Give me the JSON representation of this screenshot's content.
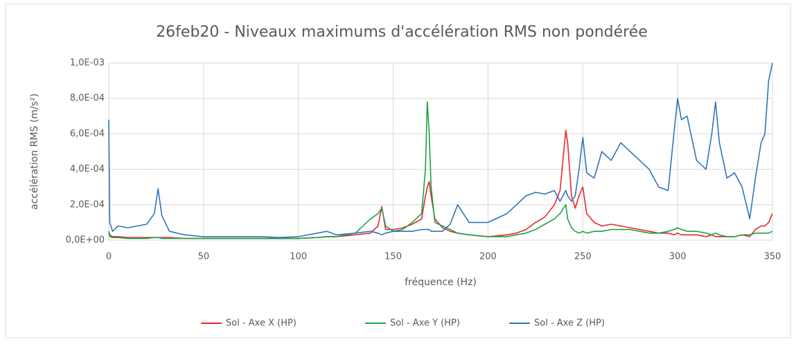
{
  "chart_data": {
    "type": "line",
    "title": "26feb20 - Niveaux maximums d'accélération RMS non pondérée",
    "x_label": "fréquence (Hz)",
    "y_label": "accélération RMS (m/s²)",
    "x": [
      0,
      0.5,
      2,
      5,
      10,
      15,
      20,
      24,
      26,
      28,
      32,
      40,
      50,
      60,
      70,
      80,
      90,
      100,
      110,
      115,
      120,
      130,
      138,
      142,
      144,
      146,
      150,
      155,
      160,
      165,
      167,
      168,
      169,
      170,
      172,
      176,
      180,
      184,
      190,
      200,
      210,
      215,
      220,
      225,
      230,
      235,
      238,
      241,
      242,
      244,
      246,
      248,
      250,
      252,
      256,
      260,
      265,
      270,
      275,
      280,
      285,
      290,
      295,
      298,
      300,
      302,
      305,
      310,
      315,
      318,
      320,
      322,
      326,
      330,
      334,
      338,
      341,
      344,
      346,
      348,
      350
    ],
    "series": [
      {
        "name": "Sol - Axe X (HP)",
        "color": "#e8262b",
        "values": [
          5e-05,
          3e-05,
          2e-05,
          2e-05,
          1.5e-05,
          1.5e-05,
          1.5e-05,
          1.5e-05,
          1.5e-05,
          1.5e-05,
          1.5e-05,
          1e-05,
          1e-05,
          1e-05,
          1e-05,
          1e-05,
          1e-05,
          1e-05,
          1.5e-05,
          2e-05,
          2e-05,
          3e-05,
          4e-05,
          8e-05,
          0.00019,
          6e-05,
          6e-05,
          7e-05,
          9e-05,
          0.00012,
          0.00025,
          0.0003,
          0.00033,
          0.00025,
          0.00012,
          7e-05,
          5e-05,
          4e-05,
          3e-05,
          2e-05,
          3e-05,
          4e-05,
          6e-05,
          0.0001,
          0.00013,
          0.0002,
          0.00028,
          0.00062,
          0.00055,
          0.00025,
          0.00018,
          0.00025,
          0.0003,
          0.00015,
          0.0001,
          8e-05,
          9e-05,
          8e-05,
          7e-05,
          6e-05,
          5e-05,
          4e-05,
          4e-05,
          3e-05,
          4e-05,
          3e-05,
          3e-05,
          3e-05,
          2e-05,
          3e-05,
          2e-05,
          2e-05,
          2e-05,
          2e-05,
          3e-05,
          2e-05,
          6e-05,
          8e-05,
          8e-05,
          0.0001,
          0.00015
        ]
      },
      {
        "name": "Sol - Axe Y (HP)",
        "color": "#1fa043",
        "values": [
          5e-05,
          2e-05,
          1.5e-05,
          1.5e-05,
          1e-05,
          1e-05,
          1e-05,
          1.5e-05,
          1.5e-05,
          1e-05,
          1e-05,
          1e-05,
          1e-05,
          1e-05,
          1e-05,
          1e-05,
          1e-05,
          1e-05,
          1.5e-05,
          2e-05,
          2e-05,
          4e-05,
          0.00012,
          0.00015,
          0.00018,
          8e-05,
          5e-05,
          6e-05,
          0.0001,
          0.00015,
          0.0004,
          0.00078,
          0.0006,
          0.0003,
          0.0001,
          8e-05,
          6e-05,
          4e-05,
          3e-05,
          2e-05,
          2e-05,
          3e-05,
          4e-05,
          6e-05,
          9e-05,
          0.00012,
          0.00015,
          0.0002,
          0.00012,
          7e-05,
          5e-05,
          4e-05,
          5e-05,
          4e-05,
          5e-05,
          5e-05,
          6e-05,
          6e-05,
          6e-05,
          5e-05,
          4e-05,
          4e-05,
          5e-05,
          6e-05,
          7e-05,
          6e-05,
          5e-05,
          5e-05,
          4e-05,
          3e-05,
          4e-05,
          3e-05,
          2e-05,
          2e-05,
          3e-05,
          3e-05,
          4e-05,
          4e-05,
          4e-05,
          4e-05,
          5e-05
        ]
      },
      {
        "name": "Sol - Axe Z (HP)",
        "color": "#2e75b6",
        "values": [
          0.00068,
          0.0001,
          5e-05,
          8e-05,
          7e-05,
          8e-05,
          9e-05,
          0.00015,
          0.00029,
          0.00014,
          5e-05,
          3e-05,
          2e-05,
          2e-05,
          2e-05,
          2e-05,
          1.5e-05,
          2e-05,
          4e-05,
          5e-05,
          3e-05,
          4e-05,
          5e-05,
          4e-05,
          3e-05,
          4e-05,
          5e-05,
          5e-05,
          5e-05,
          6e-05,
          6e-05,
          6e-05,
          6e-05,
          5e-05,
          5e-05,
          5e-05,
          9e-05,
          0.0002,
          0.0001,
          0.0001,
          0.00015,
          0.0002,
          0.00025,
          0.00027,
          0.00026,
          0.00028,
          0.00022,
          0.00028,
          0.00025,
          0.00022,
          0.00025,
          0.0004,
          0.00058,
          0.00038,
          0.00035,
          0.0005,
          0.00045,
          0.00055,
          0.0005,
          0.00045,
          0.0004,
          0.0003,
          0.00028,
          0.0006,
          0.0008,
          0.00068,
          0.0007,
          0.00045,
          0.0004,
          0.0006,
          0.00078,
          0.00055,
          0.00035,
          0.00038,
          0.0003,
          0.00012,
          0.00035,
          0.00055,
          0.0006,
          0.0009,
          0.001
        ]
      }
    ],
    "xlim": [
      0,
      350
    ],
    "xticks": [
      0,
      50,
      100,
      150,
      200,
      250,
      300,
      350
    ],
    "ylim": [
      0,
      0.001
    ],
    "yticks": [
      {
        "value": 0,
        "label": "0,0E+00"
      },
      {
        "value": 0.0002,
        "label": "2,0E-04"
      },
      {
        "value": 0.0004,
        "label": "4,0E-04"
      },
      {
        "value": 0.0006,
        "label": "6,0E-04"
      },
      {
        "value": 0.0008,
        "label": "8,0E-04"
      },
      {
        "value": 0.001,
        "label": "1,0E-03"
      }
    ],
    "grid": true,
    "legend": "bottom"
  }
}
